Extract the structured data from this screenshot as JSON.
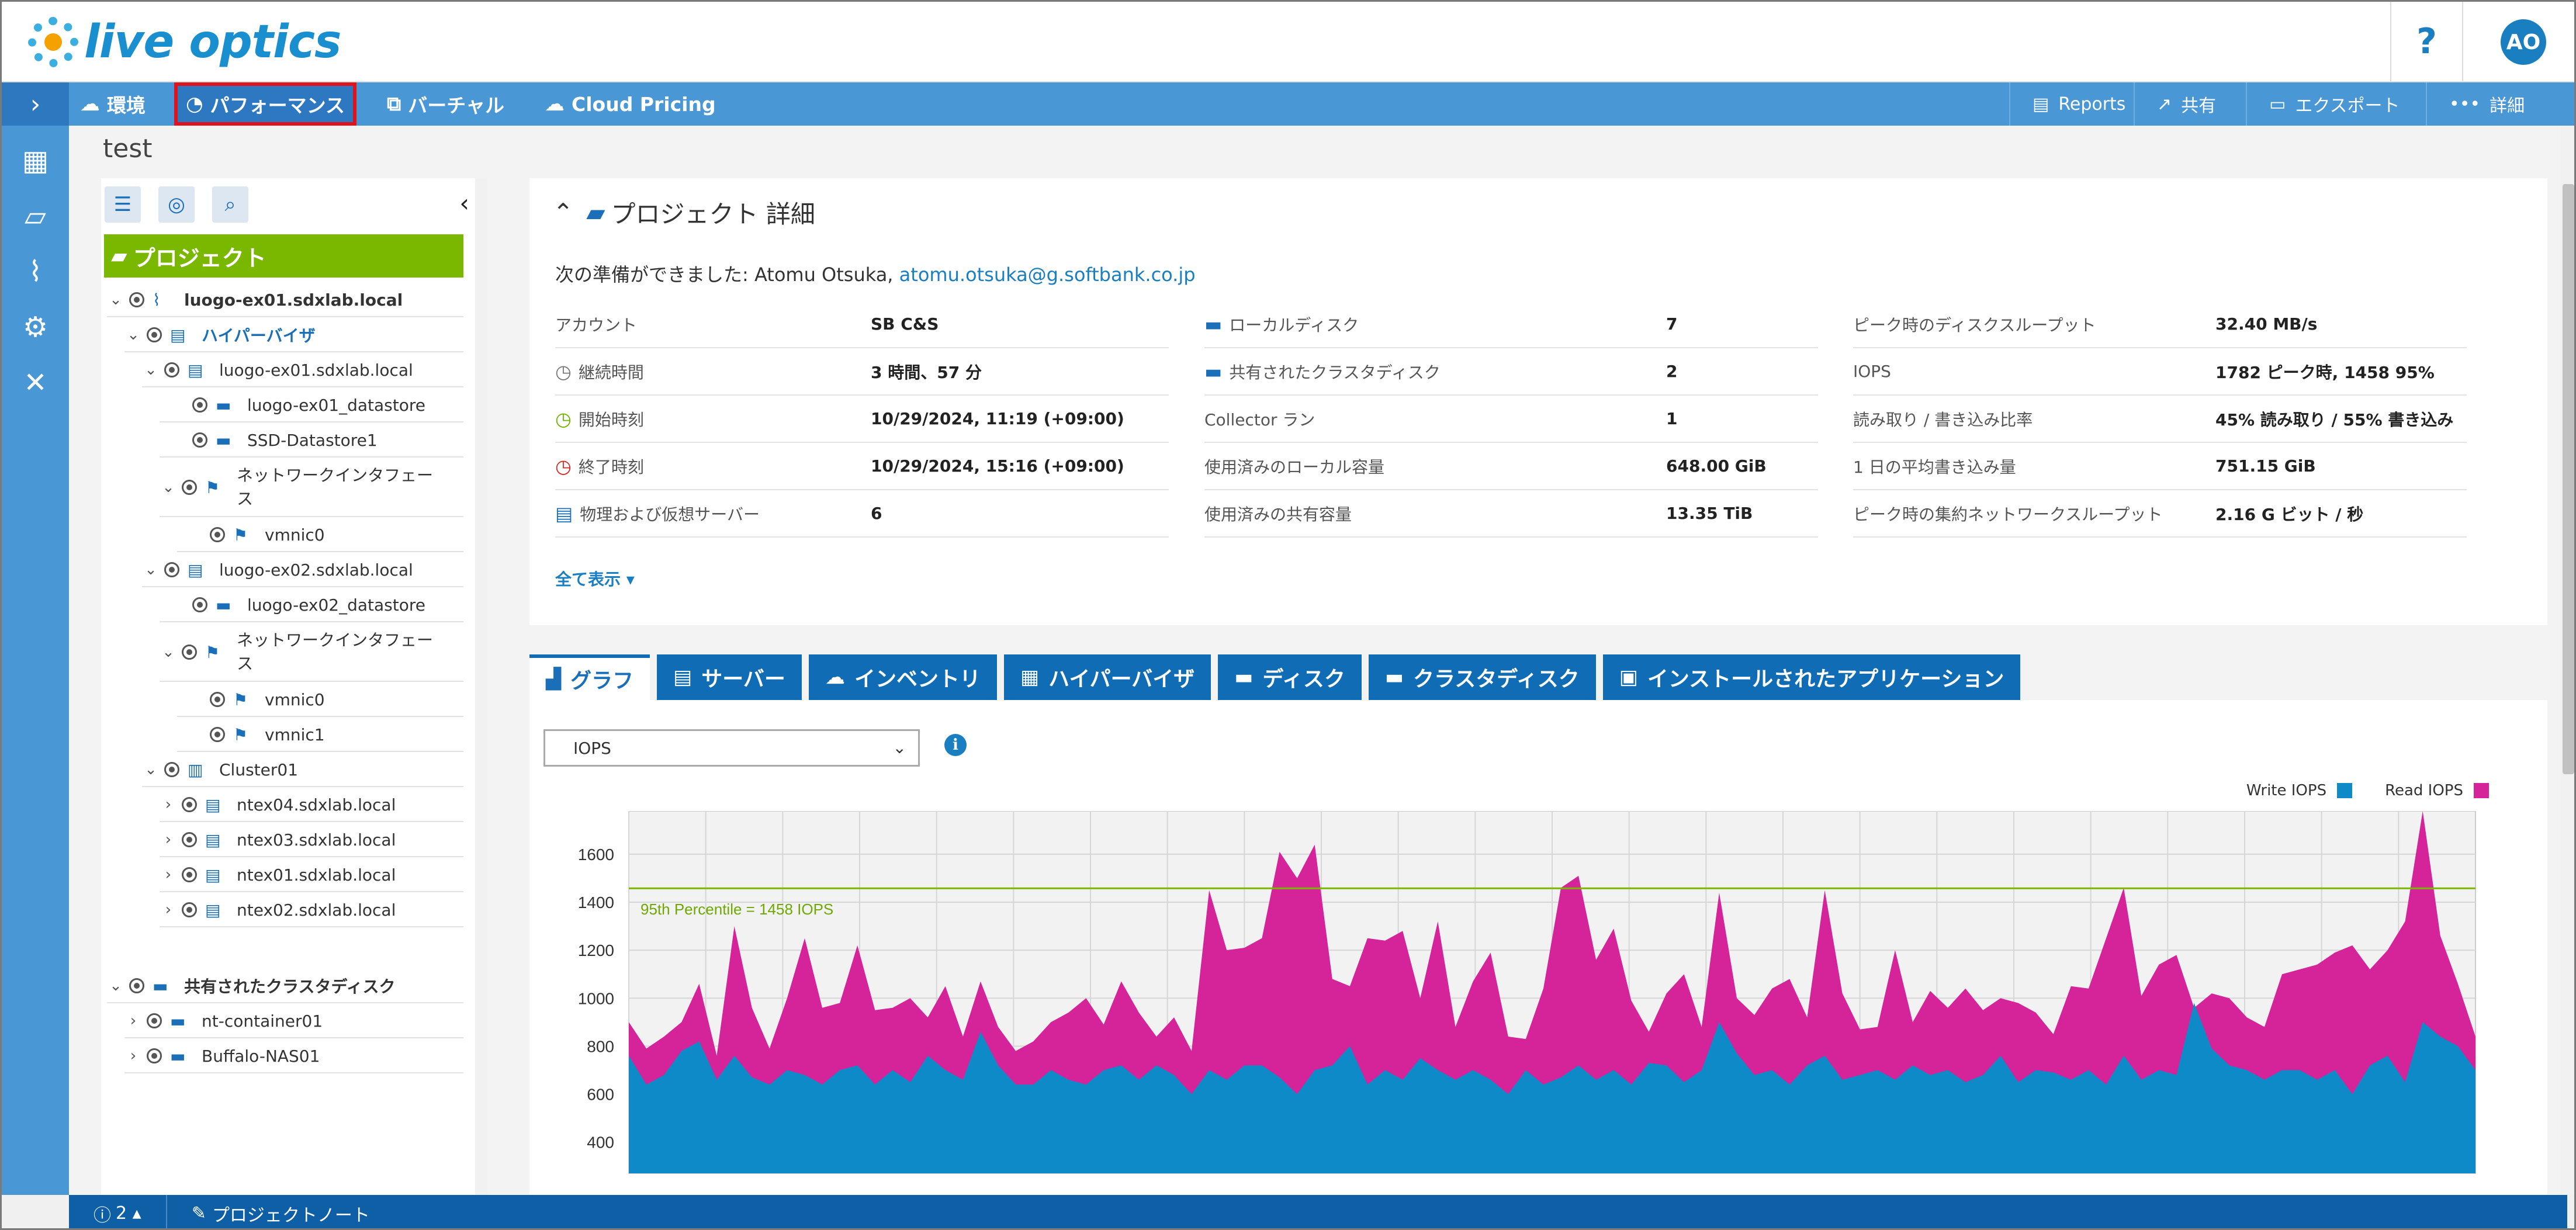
{
  "header": {
    "logo_text": "live optics",
    "help_label": "?",
    "avatar_initials": "AO"
  },
  "nav": {
    "tabs": [
      {
        "label": "環境",
        "icon": "cloud-icon"
      },
      {
        "label": "パフォーマンス",
        "icon": "gauge-icon"
      },
      {
        "label": "バーチャル",
        "icon": "virtual-icon"
      },
      {
        "label": "Cloud Pricing",
        "icon": "cloud-dollar-icon"
      }
    ],
    "right": [
      {
        "label": "Reports",
        "icon": "report-icon"
      },
      {
        "label": "共有",
        "icon": "share-icon"
      },
      {
        "label": "エクスポート",
        "icon": "folder-export-icon"
      },
      {
        "label": "詳細",
        "icon": "more-icon"
      }
    ]
  },
  "project": {
    "title": "test"
  },
  "tree": {
    "header": "プロジェクト",
    "nodes": [
      {
        "label": "luogo-ex01.sdxlab.local",
        "indent": 0,
        "chev": "v",
        "style": "bold",
        "icon": "pulse"
      },
      {
        "label": "ハイパーバイザ",
        "indent": 1,
        "chev": "v",
        "style": "blue",
        "icon": "server"
      },
      {
        "label": "luogo-ex01.sdxlab.local",
        "indent": 2,
        "chev": "v",
        "style": "",
        "icon": "server"
      },
      {
        "label": "luogo-ex01_datastore",
        "indent": 3,
        "chev": "",
        "style": "",
        "icon": "disk"
      },
      {
        "label": "SSD-Datastore1",
        "indent": 3,
        "chev": "",
        "style": "",
        "icon": "disk"
      },
      {
        "label": "ネットワークインタフェース",
        "indent": 3,
        "chev": "v",
        "style": "",
        "icon": "nic",
        "wrap": true
      },
      {
        "label": "vmnic0",
        "indent": 4,
        "chev": "",
        "style": "",
        "icon": "nic"
      },
      {
        "label": "luogo-ex02.sdxlab.local",
        "indent": 2,
        "chev": "v",
        "style": "",
        "icon": "server"
      },
      {
        "label": "luogo-ex02_datastore",
        "indent": 3,
        "chev": "",
        "style": "",
        "icon": "disk"
      },
      {
        "label": "ネットワークインタフェース",
        "indent": 3,
        "chev": "v",
        "style": "",
        "icon": "nic",
        "wrap": true
      },
      {
        "label": "vmnic0",
        "indent": 4,
        "chev": "",
        "style": "",
        "icon": "nic"
      },
      {
        "label": "vmnic1",
        "indent": 4,
        "chev": "",
        "style": "",
        "icon": "nic"
      },
      {
        "label": "Cluster01",
        "indent": 2,
        "chev": "v",
        "style": "",
        "icon": "cluster"
      },
      {
        "label": "ntex04.sdxlab.local",
        "indent": 3,
        "chev": ">",
        "style": "",
        "icon": "server"
      },
      {
        "label": "ntex03.sdxlab.local",
        "indent": 3,
        "chev": ">",
        "style": "",
        "icon": "server"
      },
      {
        "label": "ntex01.sdxlab.local",
        "indent": 3,
        "chev": ">",
        "style": "",
        "icon": "server"
      },
      {
        "label": "ntex02.sdxlab.local",
        "indent": 3,
        "chev": ">",
        "style": "",
        "icon": "server"
      },
      {
        "label": "共有されたクラスタディスク",
        "indent": 0,
        "chev": "v",
        "style": "bold",
        "icon": "shared",
        "gap": true
      },
      {
        "label": "nt-container01",
        "indent": 1,
        "chev": ">",
        "style": "",
        "icon": "disk"
      },
      {
        "label": "Buffalo-NAS01",
        "indent": 1,
        "chev": ">",
        "style": "",
        "icon": "disk"
      }
    ]
  },
  "details": {
    "title": "プロジェクト 詳細",
    "ready_prefix": "次の準備ができました: Atomu Otsuka,",
    "ready_email": "atomu.otsuka@g.softbank.co.jp",
    "show_all": "全て表示 ▾",
    "col1": [
      {
        "k": "アカウント",
        "v": "SB C&S",
        "icon": ""
      },
      {
        "k": "継続時間",
        "v": "3 時間、57 分",
        "icon": "clock"
      },
      {
        "k": "開始時刻",
        "v": "10/29/2024, 11:19 (+09:00)",
        "icon": "start"
      },
      {
        "k": "終了時刻",
        "v": "10/29/2024, 15:16 (+09:00)",
        "icon": "end"
      },
      {
        "k": "物理および仮想サーバー",
        "v": "6",
        "icon": "server"
      }
    ],
    "col2": [
      {
        "k": "ローカルディスク",
        "v": "7",
        "icon": "disk"
      },
      {
        "k": "共有されたクラスタディスク",
        "v": "2",
        "icon": "shared"
      },
      {
        "k": "Collector ラン",
        "v": "1",
        "icon": ""
      },
      {
        "k": "使用済みのローカル容量",
        "v": "648.00 GiB",
        "icon": ""
      },
      {
        "k": "使用済みの共有容量",
        "v": "13.35 TiB",
        "icon": ""
      }
    ],
    "col3": [
      {
        "k": "ピーク時のディスクスループット",
        "v": "32.40 MB/s"
      },
      {
        "k": "IOPS",
        "v": "1782 ピーク時, 1458 95%"
      },
      {
        "k": "読み取り / 書き込み比率",
        "v": "45% 読み取り / 55% 書き込み"
      },
      {
        "k": "1 日の平均書き込み量",
        "v": "751.15 GiB"
      },
      {
        "k": "ピーク時の集約ネットワークスループット",
        "v": "2.16 G ビット / 秒"
      }
    ]
  },
  "chart_tabs": [
    {
      "label": "グラフ",
      "icon": "chart-icon"
    },
    {
      "label": "サーバー",
      "icon": "server-icon"
    },
    {
      "label": "インベントリ",
      "icon": "inventory-icon"
    },
    {
      "label": "ハイパーバイザ",
      "icon": "hypervisor-icon"
    },
    {
      "label": "ディスク",
      "icon": "disk-icon"
    },
    {
      "label": "クラスタディスク",
      "icon": "cluster-disk-icon"
    },
    {
      "label": "インストールされたアプリケーション",
      "icon": "apps-icon"
    }
  ],
  "metric_select": {
    "value": "IOPS"
  },
  "chart_data": {
    "type": "area",
    "ylim": [
      270,
      1780
    ],
    "yticks": [
      400,
      600,
      800,
      1000,
      1200,
      1400,
      1600
    ],
    "percentile": {
      "label": "95th Percentile = 1458 IOPS",
      "value": 1458
    },
    "legend": [
      {
        "name": "Write IOPS",
        "color": "#0f8ac9"
      },
      {
        "name": "Read IOPS",
        "color": "#d5239a"
      }
    ],
    "series": [
      {
        "name": "Write IOPS",
        "values": [
          760,
          640,
          680,
          780,
          820,
          660,
          760,
          670,
          640,
          700,
          680,
          640,
          700,
          720,
          640,
          700,
          650,
          760,
          700,
          660,
          860,
          720,
          640,
          640,
          700,
          660,
          640,
          700,
          720,
          660,
          720,
          680,
          600,
          700,
          660,
          720,
          720,
          670,
          600,
          700,
          720,
          800,
          640,
          700,
          660,
          750,
          700,
          660,
          700,
          660,
          600,
          700,
          640,
          670,
          720,
          660,
          700,
          640,
          730,
          720,
          650,
          700,
          900,
          770,
          680,
          700,
          640,
          720,
          760,
          660,
          680,
          700,
          660,
          720,
          680,
          700,
          650,
          680,
          760,
          650,
          700,
          690,
          660,
          700,
          640,
          760,
          660,
          700,
          680,
          980,
          790,
          720,
          700,
          660,
          700,
          700,
          660,
          700,
          600,
          720,
          760,
          650,
          900,
          840,
          800,
          700
        ]
      },
      {
        "name": "Read IOPS",
        "values": [
          900,
          790,
          840,
          900,
          1060,
          760,
          1300,
          960,
          790,
          1000,
          1250,
          960,
          980,
          1220,
          950,
          960,
          1000,
          920,
          1050,
          840,
          1070,
          880,
          780,
          820,
          900,
          940,
          1000,
          890,
          1070,
          940,
          840,
          920,
          780,
          1450,
          1200,
          1210,
          1250,
          1610,
          1500,
          1640,
          1080,
          1050,
          1250,
          1240,
          1280,
          1000,
          1320,
          880,
          1070,
          1190,
          840,
          830,
          1040,
          1460,
          1510,
          1160,
          1290,
          990,
          860,
          1020,
          1100,
          880,
          1440,
          1000,
          930,
          1040,
          1080,
          920,
          1450,
          1020,
          870,
          880,
          1200,
          900,
          1030,
          960,
          1040,
          950,
          1000,
          980,
          940,
          850,
          1050,
          1040,
          1250,
          1460,
          1010,
          1140,
          1180,
          960,
          1020,
          1000,
          920,
          880,
          1100,
          1120,
          1140,
          1190,
          1220,
          1120,
          1200,
          1320,
          1780,
          1260,
          1060,
          840
        ]
      }
    ]
  },
  "footer": {
    "info_count": "2 ▴",
    "notes_label": "プロジェクトノート"
  }
}
